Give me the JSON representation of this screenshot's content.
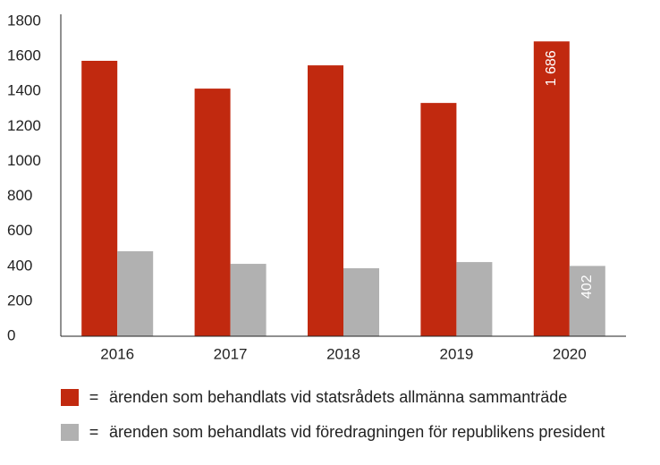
{
  "chart_data": {
    "type": "bar",
    "categories": [
      "2016",
      "2017",
      "2018",
      "2019",
      "2020"
    ],
    "series": [
      {
        "name": "ärenden som behandlats vid statsrådets allmänna sammanträde",
        "color": "#c1290f",
        "values": [
          1575,
          1416,
          1549,
          1334,
          1686
        ],
        "value_labels": [
          null,
          null,
          null,
          null,
          "1 686"
        ]
      },
      {
        "name": "ärenden som behandlats vid föredragningen för republikens president",
        "color": "#b1b1b1",
        "values": [
          486,
          414,
          389,
          424,
          402
        ],
        "value_labels": [
          null,
          null,
          null,
          null,
          "402"
        ]
      }
    ],
    "legend_separator": "=",
    "ylim": [
      0,
      1800
    ],
    "yticks": [
      0,
      200,
      400,
      600,
      800,
      1000,
      1200,
      1400,
      1600,
      1800
    ],
    "grid": false
  }
}
